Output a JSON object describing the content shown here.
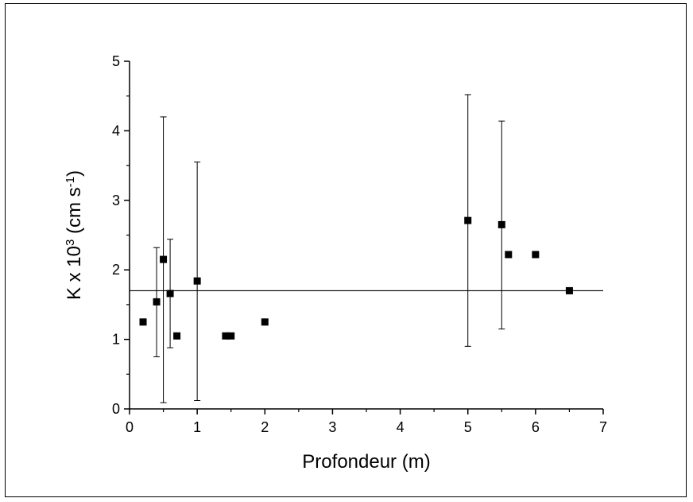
{
  "chart_data": {
    "type": "scatter",
    "title": "",
    "xlabel": "Profondeur (m)",
    "ylabel": {
      "base": "K x 10",
      "exponent": "3",
      "unit_open": " (cm s",
      "unit_exponent": "-1",
      "unit_close": ")"
    },
    "xlim": [
      0,
      7
    ],
    "ylim": [
      0,
      5
    ],
    "xticks": [
      "0",
      "1",
      "2",
      "3",
      "4",
      "5",
      "6",
      "7"
    ],
    "yticks": [
      "0",
      "1",
      "2",
      "3",
      "4",
      "5"
    ],
    "grid": false,
    "legend": "none",
    "series": [
      {
        "marker": "square",
        "color": "#000000",
        "points": [
          {
            "x": 0.2,
            "y": 1.25
          },
          {
            "x": 0.4,
            "y": 1.54,
            "err_low": 0.75,
            "err_high": 2.32
          },
          {
            "x": 0.5,
            "y": 2.15,
            "err_low": 0.09,
            "err_high": 4.2
          },
          {
            "x": 0.6,
            "y": 1.66,
            "err_low": 0.88,
            "err_high": 2.44
          },
          {
            "x": 0.7,
            "y": 1.05
          },
          {
            "x": 1.0,
            "y": 1.84,
            "err_low": 0.12,
            "err_high": 3.55
          },
          {
            "x": 1.42,
            "y": 1.05
          },
          {
            "x": 1.5,
            "y": 1.05
          },
          {
            "x": 2.0,
            "y": 1.25
          },
          {
            "x": 5.0,
            "y": 2.71,
            "err_low": 0.9,
            "err_high": 4.52
          },
          {
            "x": 5.5,
            "y": 2.65,
            "err_low": 1.15,
            "err_high": 4.14
          },
          {
            "x": 5.6,
            "y": 2.22
          },
          {
            "x": 6.0,
            "y": 2.22
          },
          {
            "x": 6.5,
            "y": 1.7
          }
        ]
      }
    ],
    "reference_line": {
      "y": 1.7,
      "x_range": [
        0,
        7
      ]
    },
    "colors": {
      "axis": "#000000",
      "marker": "#000000",
      "background": "#ffffff"
    }
  }
}
